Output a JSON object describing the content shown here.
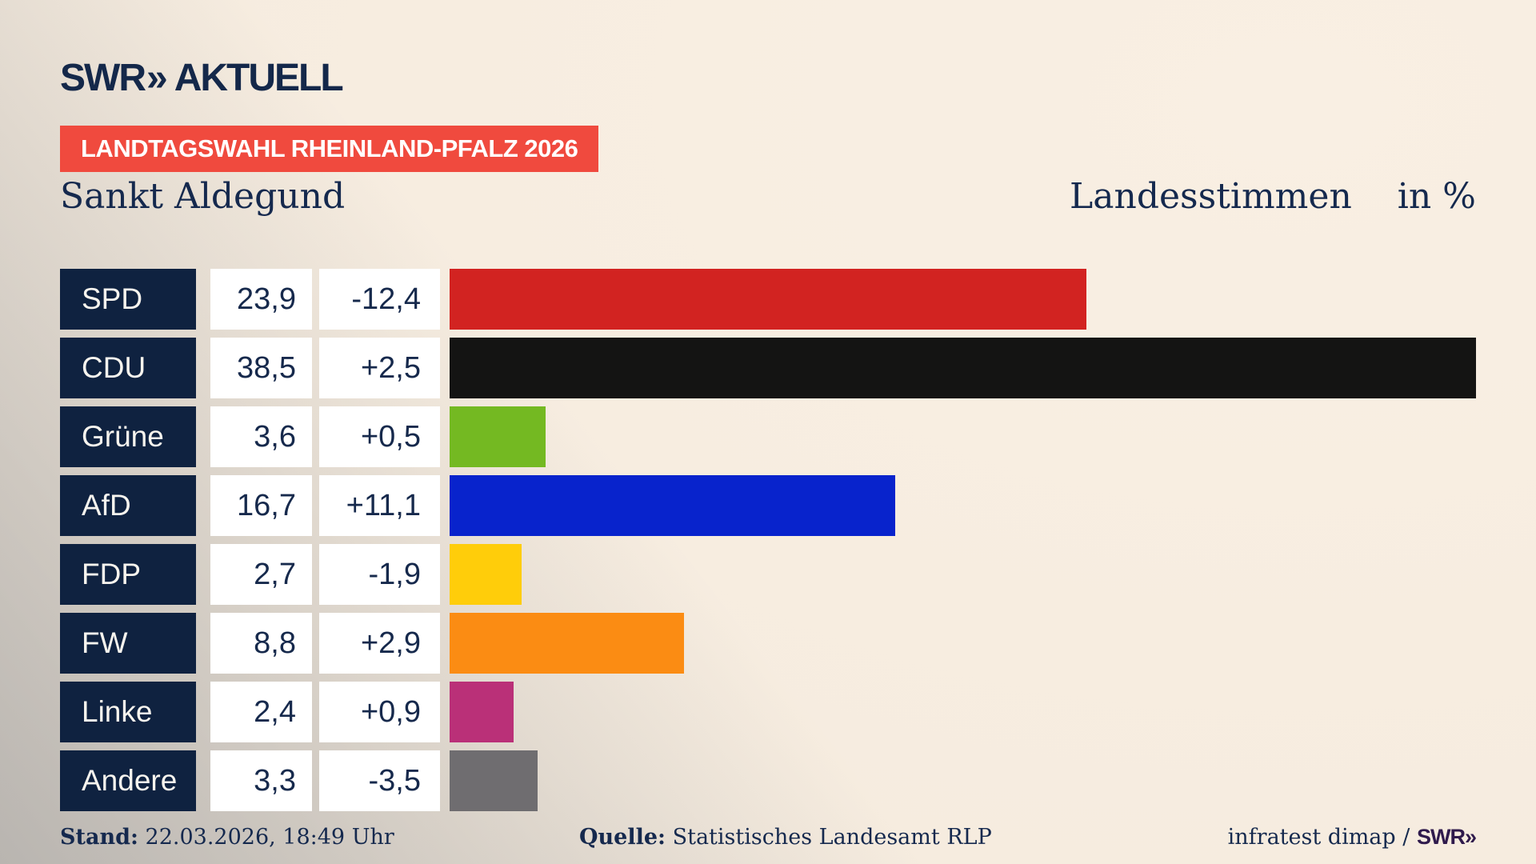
{
  "brand": {
    "name": "SWR",
    "chevron": "»",
    "suffix": "AKTUELL"
  },
  "banner": {
    "label": "LANDTAGSWAHL RHEINLAND-PFALZ 2026"
  },
  "header": {
    "title": "Sankt Aldegund",
    "right_title": "Landesstimmen",
    "unit_label": "in %"
  },
  "chart_data": {
    "type": "bar",
    "orientation": "horizontal",
    "title": "Landtagswahl Rheinland-Pfalz 2026 — Sankt Aldegund, Landesstimmen in %",
    "categories": [
      "SPD",
      "CDU",
      "Grüne",
      "AfD",
      "FDP",
      "FW",
      "Linke",
      "Andere"
    ],
    "values": [
      23.9,
      38.5,
      3.6,
      16.7,
      2.7,
      8.8,
      2.4,
      3.3
    ],
    "changes": [
      -12.4,
      2.5,
      0.5,
      11.1,
      -1.9,
      2.9,
      0.9,
      -3.5
    ],
    "value_labels": [
      "23,9",
      "38,5",
      "3,6",
      "16,7",
      "2,7",
      "8,8",
      "2,4",
      "3,3"
    ],
    "change_labels": [
      "-12,4",
      "+2,5",
      "+0,5",
      "+11,1",
      "-1,9",
      "+2,9",
      "+0,9",
      "-3,5"
    ],
    "bar_colors": [
      "#d22321",
      "#141413",
      "#74b922",
      "#0823cc",
      "#ffcd0a",
      "#fb8c13",
      "#ba3078",
      "#6f6d70"
    ],
    "unit": "%",
    "xlim": [
      0,
      38.5
    ],
    "grid": false,
    "legend": false
  },
  "footer": {
    "stand_label": "Stand:",
    "stand_value": "22.03.2026, 18:49 Uhr",
    "quelle_label": "Quelle:",
    "quelle_value": "Statistisches Landesamt RLP",
    "credit_text": "infratest dimap /",
    "credit_brand": "SWR",
    "credit_chevron": "»"
  },
  "colors": {
    "background_cream": "#f6ecdf",
    "background_gray": "#c9c6c3",
    "cell_navy": "#0f2240",
    "text_navy": "#15294e",
    "banner_red": "#f04a3e",
    "cell_white": "#ffffff",
    "credit_purple": "#2f1a4c"
  }
}
